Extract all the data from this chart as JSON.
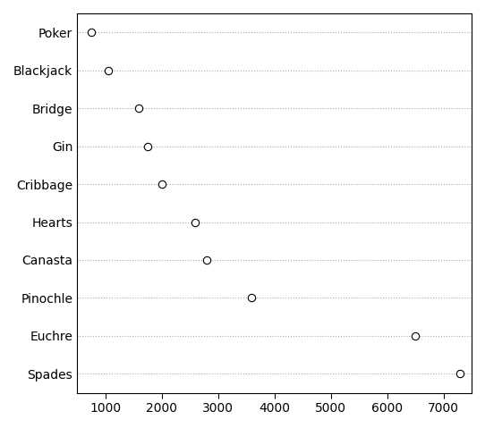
{
  "categories": [
    "Poker",
    "Blackjack",
    "Bridge",
    "Gin",
    "Cribbage",
    "Hearts",
    "Canasta",
    "Pinochle",
    "Euchre",
    "Spades"
  ],
  "values": [
    750,
    1050,
    1600,
    1750,
    2000,
    2600,
    2800,
    3600,
    6500,
    7300
  ],
  "xlim": [
    500,
    7500
  ],
  "xticks": [
    1000,
    2000,
    3000,
    4000,
    5000,
    6000,
    7000
  ],
  "dot_color": "white",
  "dot_edgecolor": "black",
  "dot_size": 6,
  "dot_linewidth": 0.8,
  "grid_color": "#aaaaaa",
  "grid_linestyle": ":",
  "grid_linewidth": 0.8,
  "background_color": "white",
  "spine_color": "black",
  "tick_label_fontsize": 10,
  "figsize": [
    5.42,
    4.79
  ],
  "dpi": 100
}
